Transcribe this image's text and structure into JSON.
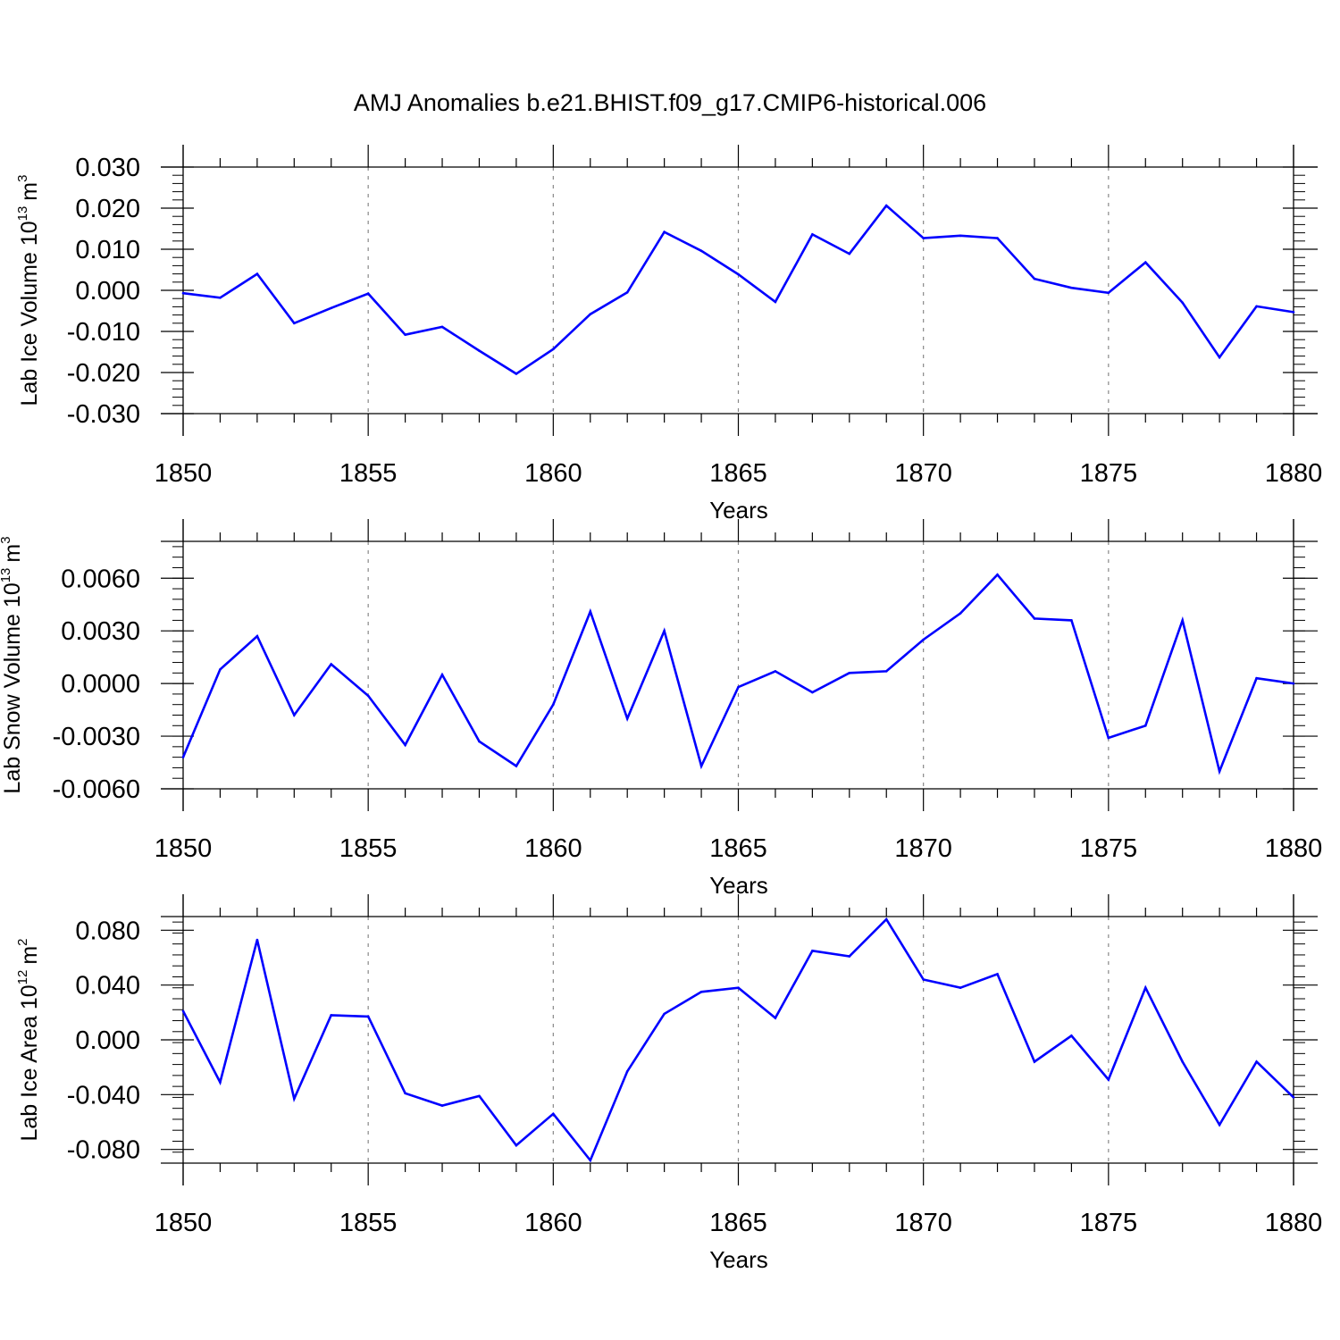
{
  "figure_title": "AMJ Anomalies b.e21.BHIST.f09_g17.CMIP6-historical.006",
  "colors": {
    "line": "#0000ff",
    "axis": "#000000",
    "grid": "#888888"
  },
  "chart_data": [
    {
      "type": "line",
      "x": [
        1850,
        1851,
        1852,
        1853,
        1854,
        1855,
        1856,
        1857,
        1858,
        1859,
        1860,
        1861,
        1862,
        1863,
        1864,
        1865,
        1866,
        1867,
        1868,
        1869,
        1870,
        1871,
        1872,
        1873,
        1874,
        1875,
        1876,
        1877,
        1878,
        1879,
        1880
      ],
      "values": [
        -0.0007,
        -0.0018,
        0.004,
        -0.008,
        -0.0043,
        -0.0008,
        -0.0108,
        -0.0089,
        -0.0147,
        -0.0203,
        -0.0143,
        -0.0058,
        -0.0005,
        0.0142,
        0.0096,
        0.0039,
        -0.0028,
        0.0136,
        0.0089,
        0.0206,
        0.0127,
        0.0133,
        0.0127,
        0.0028,
        0.0006,
        -0.0006,
        0.0068,
        -0.003,
        -0.0163,
        -0.0039,
        -0.0053
      ],
      "ylabel": "Lab Ice Volume 10",
      "ylabel_exp": "13",
      "ylabel_unit": "m",
      "ylabel_unit_exp": "3",
      "xlabel": "Years",
      "xlim": [
        1850,
        1880
      ],
      "ylim": [
        -0.03,
        0.03
      ],
      "yticks": [
        -0.03,
        -0.02,
        -0.01,
        0.0,
        0.01,
        0.02,
        0.03
      ],
      "yticklabels": [
        "-0.030",
        "-0.020",
        "-0.010",
        "0.000",
        "0.010",
        "0.020",
        "0.030"
      ],
      "xticks": [
        1850,
        1855,
        1860,
        1865,
        1870,
        1875,
        1880
      ],
      "xticklabels": [
        "1850",
        "1855",
        "1860",
        "1865",
        "1870",
        "1875",
        "1880"
      ],
      "grid": "dashed vertical at major x ticks"
    },
    {
      "type": "line",
      "x": [
        1850,
        1851,
        1852,
        1853,
        1854,
        1855,
        1856,
        1857,
        1858,
        1859,
        1860,
        1861,
        1862,
        1863,
        1864,
        1865,
        1866,
        1867,
        1868,
        1869,
        1870,
        1871,
        1872,
        1873,
        1874,
        1875,
        1876,
        1877,
        1878,
        1879,
        1880
      ],
      "values": [
        -0.0042,
        0.0008,
        0.0027,
        -0.0018,
        0.0011,
        -0.0007,
        -0.0035,
        0.0005,
        -0.0033,
        -0.0047,
        -0.0012,
        0.0041,
        -0.002,
        0.003,
        -0.0047,
        -0.0002,
        0.0007,
        -0.0005,
        0.0006,
        0.0007,
        0.0025,
        0.004,
        0.0062,
        0.0037,
        0.0036,
        -0.0031,
        -0.0024,
        0.0036,
        -0.005,
        0.0003,
        0.0
      ],
      "ylabel": "Lab Snow Volume 10",
      "ylabel_exp": "13",
      "ylabel_unit": "m",
      "ylabel_unit_exp": "3",
      "xlabel": "Years",
      "xlim": [
        1850,
        1880
      ],
      "ylim": [
        -0.006,
        0.0081
      ],
      "yticks": [
        -0.006,
        -0.003,
        0.0,
        0.003,
        0.006
      ],
      "yticklabels": [
        "-0.0060",
        "-0.0030",
        "0.0000",
        "0.0030",
        "0.0060"
      ],
      "xticks": [
        1850,
        1855,
        1860,
        1865,
        1870,
        1875,
        1880
      ],
      "xticklabels": [
        "1850",
        "1855",
        "1860",
        "1865",
        "1870",
        "1875",
        "1880"
      ],
      "grid": "dashed vertical at major x ticks"
    },
    {
      "type": "line",
      "x": [
        1850,
        1851,
        1852,
        1853,
        1854,
        1855,
        1856,
        1857,
        1858,
        1859,
        1860,
        1861,
        1862,
        1863,
        1864,
        1865,
        1866,
        1867,
        1868,
        1869,
        1870,
        1871,
        1872,
        1873,
        1874,
        1875,
        1876,
        1877,
        1878,
        1879,
        1880
      ],
      "values": [
        0.021,
        -0.031,
        0.073,
        -0.043,
        0.018,
        0.017,
        -0.039,
        -0.048,
        -0.041,
        -0.077,
        -0.054,
        -0.088,
        -0.023,
        0.019,
        0.035,
        0.038,
        0.016,
        0.065,
        0.061,
        0.088,
        0.044,
        0.038,
        0.048,
        -0.016,
        0.003,
        -0.029,
        0.038,
        -0.016,
        -0.062,
        -0.016,
        -0.042
      ],
      "ylabel": "Lab Ice Area 10",
      "ylabel_exp": "12",
      "ylabel_unit": "m",
      "ylabel_unit_exp": "2",
      "xlabel": "Years",
      "xlim": [
        1850,
        1880
      ],
      "ylim": [
        -0.09,
        0.09
      ],
      "yticks": [
        -0.08,
        -0.04,
        0.0,
        0.04,
        0.08
      ],
      "yticklabels": [
        "-0.080",
        "-0.040",
        "0.000",
        "0.040",
        "0.080"
      ],
      "xticks": [
        1850,
        1855,
        1860,
        1865,
        1870,
        1875,
        1880
      ],
      "xticklabels": [
        "1850",
        "1855",
        "1860",
        "1865",
        "1870",
        "1875",
        "1880"
      ],
      "grid": "dashed vertical at major x ticks"
    }
  ]
}
